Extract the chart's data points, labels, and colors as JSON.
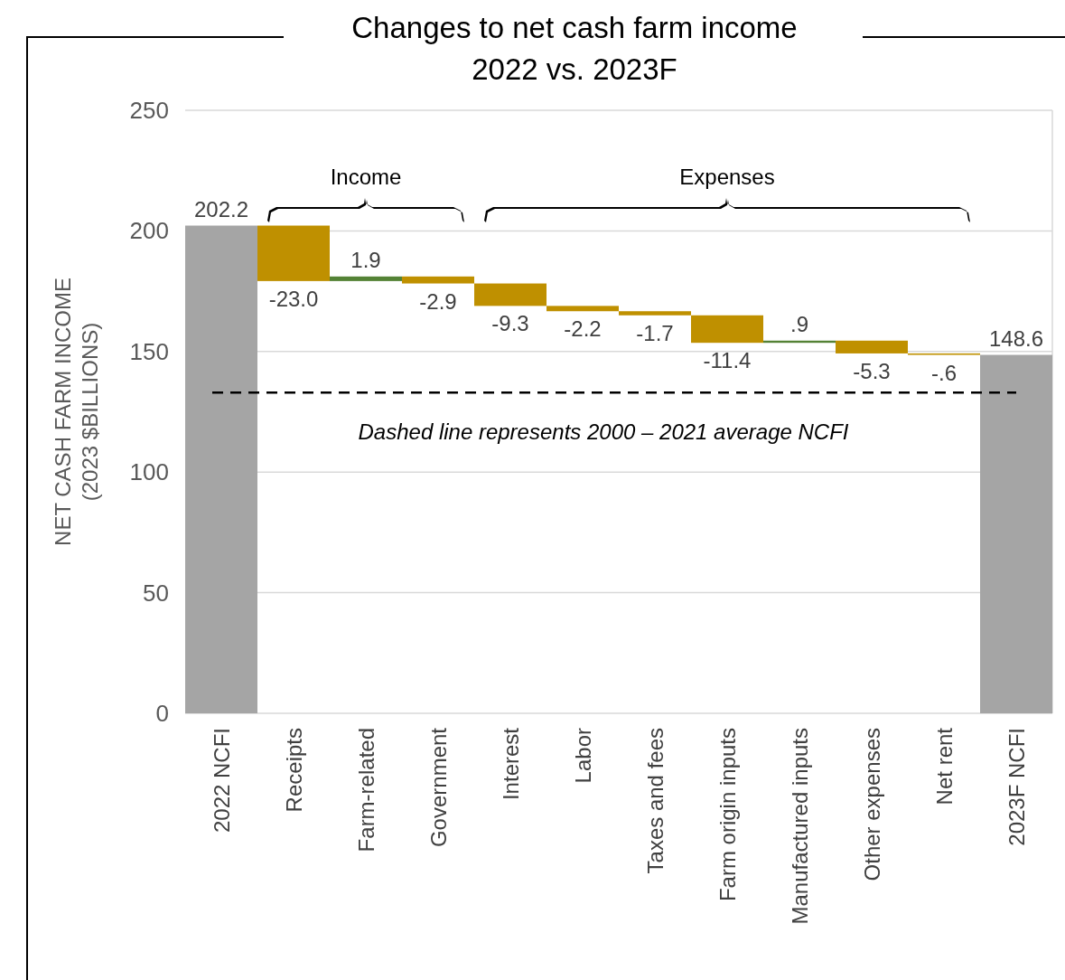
{
  "chart_data": {
    "type": "bar",
    "title": "Changes to net cash farm income",
    "subtitle": "2022 vs. 2023F",
    "ylabel": "NET CASH FARM INCOME (2023 $BILLIONS)",
    "categories": [
      "2022 NCFI",
      "Receipts",
      "Farm-related",
      "Government",
      "Interest",
      "Labor",
      "Taxes and fees",
      "Farm origin inputs",
      "Manufactured inputs",
      "Other expenses",
      "Net rent",
      "2023F NCFI"
    ],
    "values": [
      202.2,
      -23.0,
      1.9,
      -2.9,
      -9.3,
      -2.2,
      -1.7,
      -11.4,
      0.9,
      -5.3,
      -0.6,
      148.6
    ],
    "base": [
      0,
      202.2,
      179.2,
      181.1,
      178.2,
      168.9,
      166.7,
      165.0,
      153.6,
      154.5,
      149.2,
      0
    ],
    "colors": [
      "#a5a5a5",
      "#bf9000",
      "#548235",
      "#bf9000",
      "#bf9000",
      "#bf9000",
      "#bf9000",
      "#bf9000",
      "#548235",
      "#bf9000",
      "#bf9000",
      "#a5a5a5"
    ],
    "value_labels": [
      "202.2",
      "-23.0",
      "1.9",
      "-2.9",
      "-9.3",
      "-2.2",
      "-1.7",
      "-11.4",
      ".9",
      "-5.3",
      "-.6",
      "148.6"
    ],
    "ylim": [
      0,
      250
    ],
    "yticks": [
      0,
      50,
      100,
      150,
      200,
      250
    ],
    "grid": "y",
    "ref_lines": [
      {
        "axis": "y",
        "value": 133,
        "label": "Dashed line represents 2000 – 2021 average NCFI",
        "color": "#000000",
        "line_style": "dashed"
      }
    ],
    "annotations": [
      "Income",
      "Expenses"
    ]
  }
}
